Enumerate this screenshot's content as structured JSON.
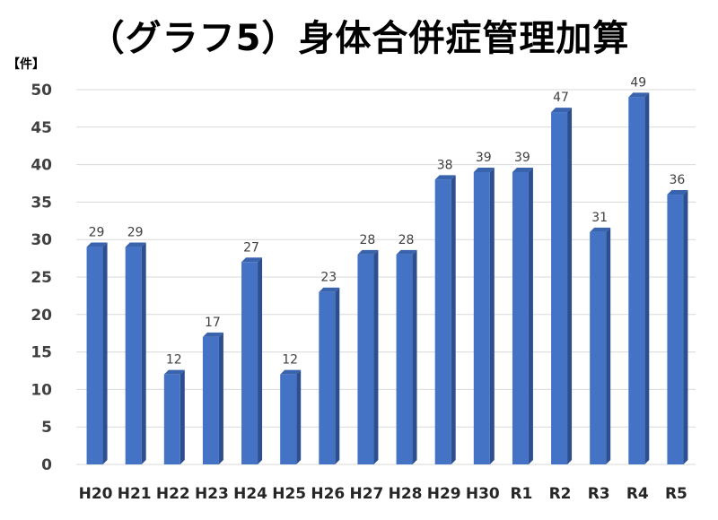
{
  "chart_data": {
    "type": "bar",
    "title": "（グラフ5）身体合併症管理加算",
    "ylabel": "【件】",
    "xlabel": "",
    "categories": [
      "H20",
      "H21",
      "H22",
      "H23",
      "H24",
      "H25",
      "H26",
      "H27",
      "H28",
      "H29",
      "H30",
      "R1",
      "R2",
      "R3",
      "R4",
      "R5"
    ],
    "values": [
      29,
      29,
      12,
      17,
      27,
      12,
      23,
      28,
      28,
      38,
      39,
      39,
      47,
      31,
      49,
      36
    ],
    "ylim": [
      0,
      50
    ],
    "yticks": [
      0,
      5,
      10,
      15,
      20,
      25,
      30,
      35,
      40,
      45,
      50
    ],
    "grid": true,
    "legend": "none",
    "data_labels": true,
    "bar_style": "3d",
    "colors": {
      "bar_front": "#4472C4",
      "bar_side": "#2E4F8F",
      "bar_top": "#3A63AE",
      "gridline": "#D9D9D9"
    }
  }
}
